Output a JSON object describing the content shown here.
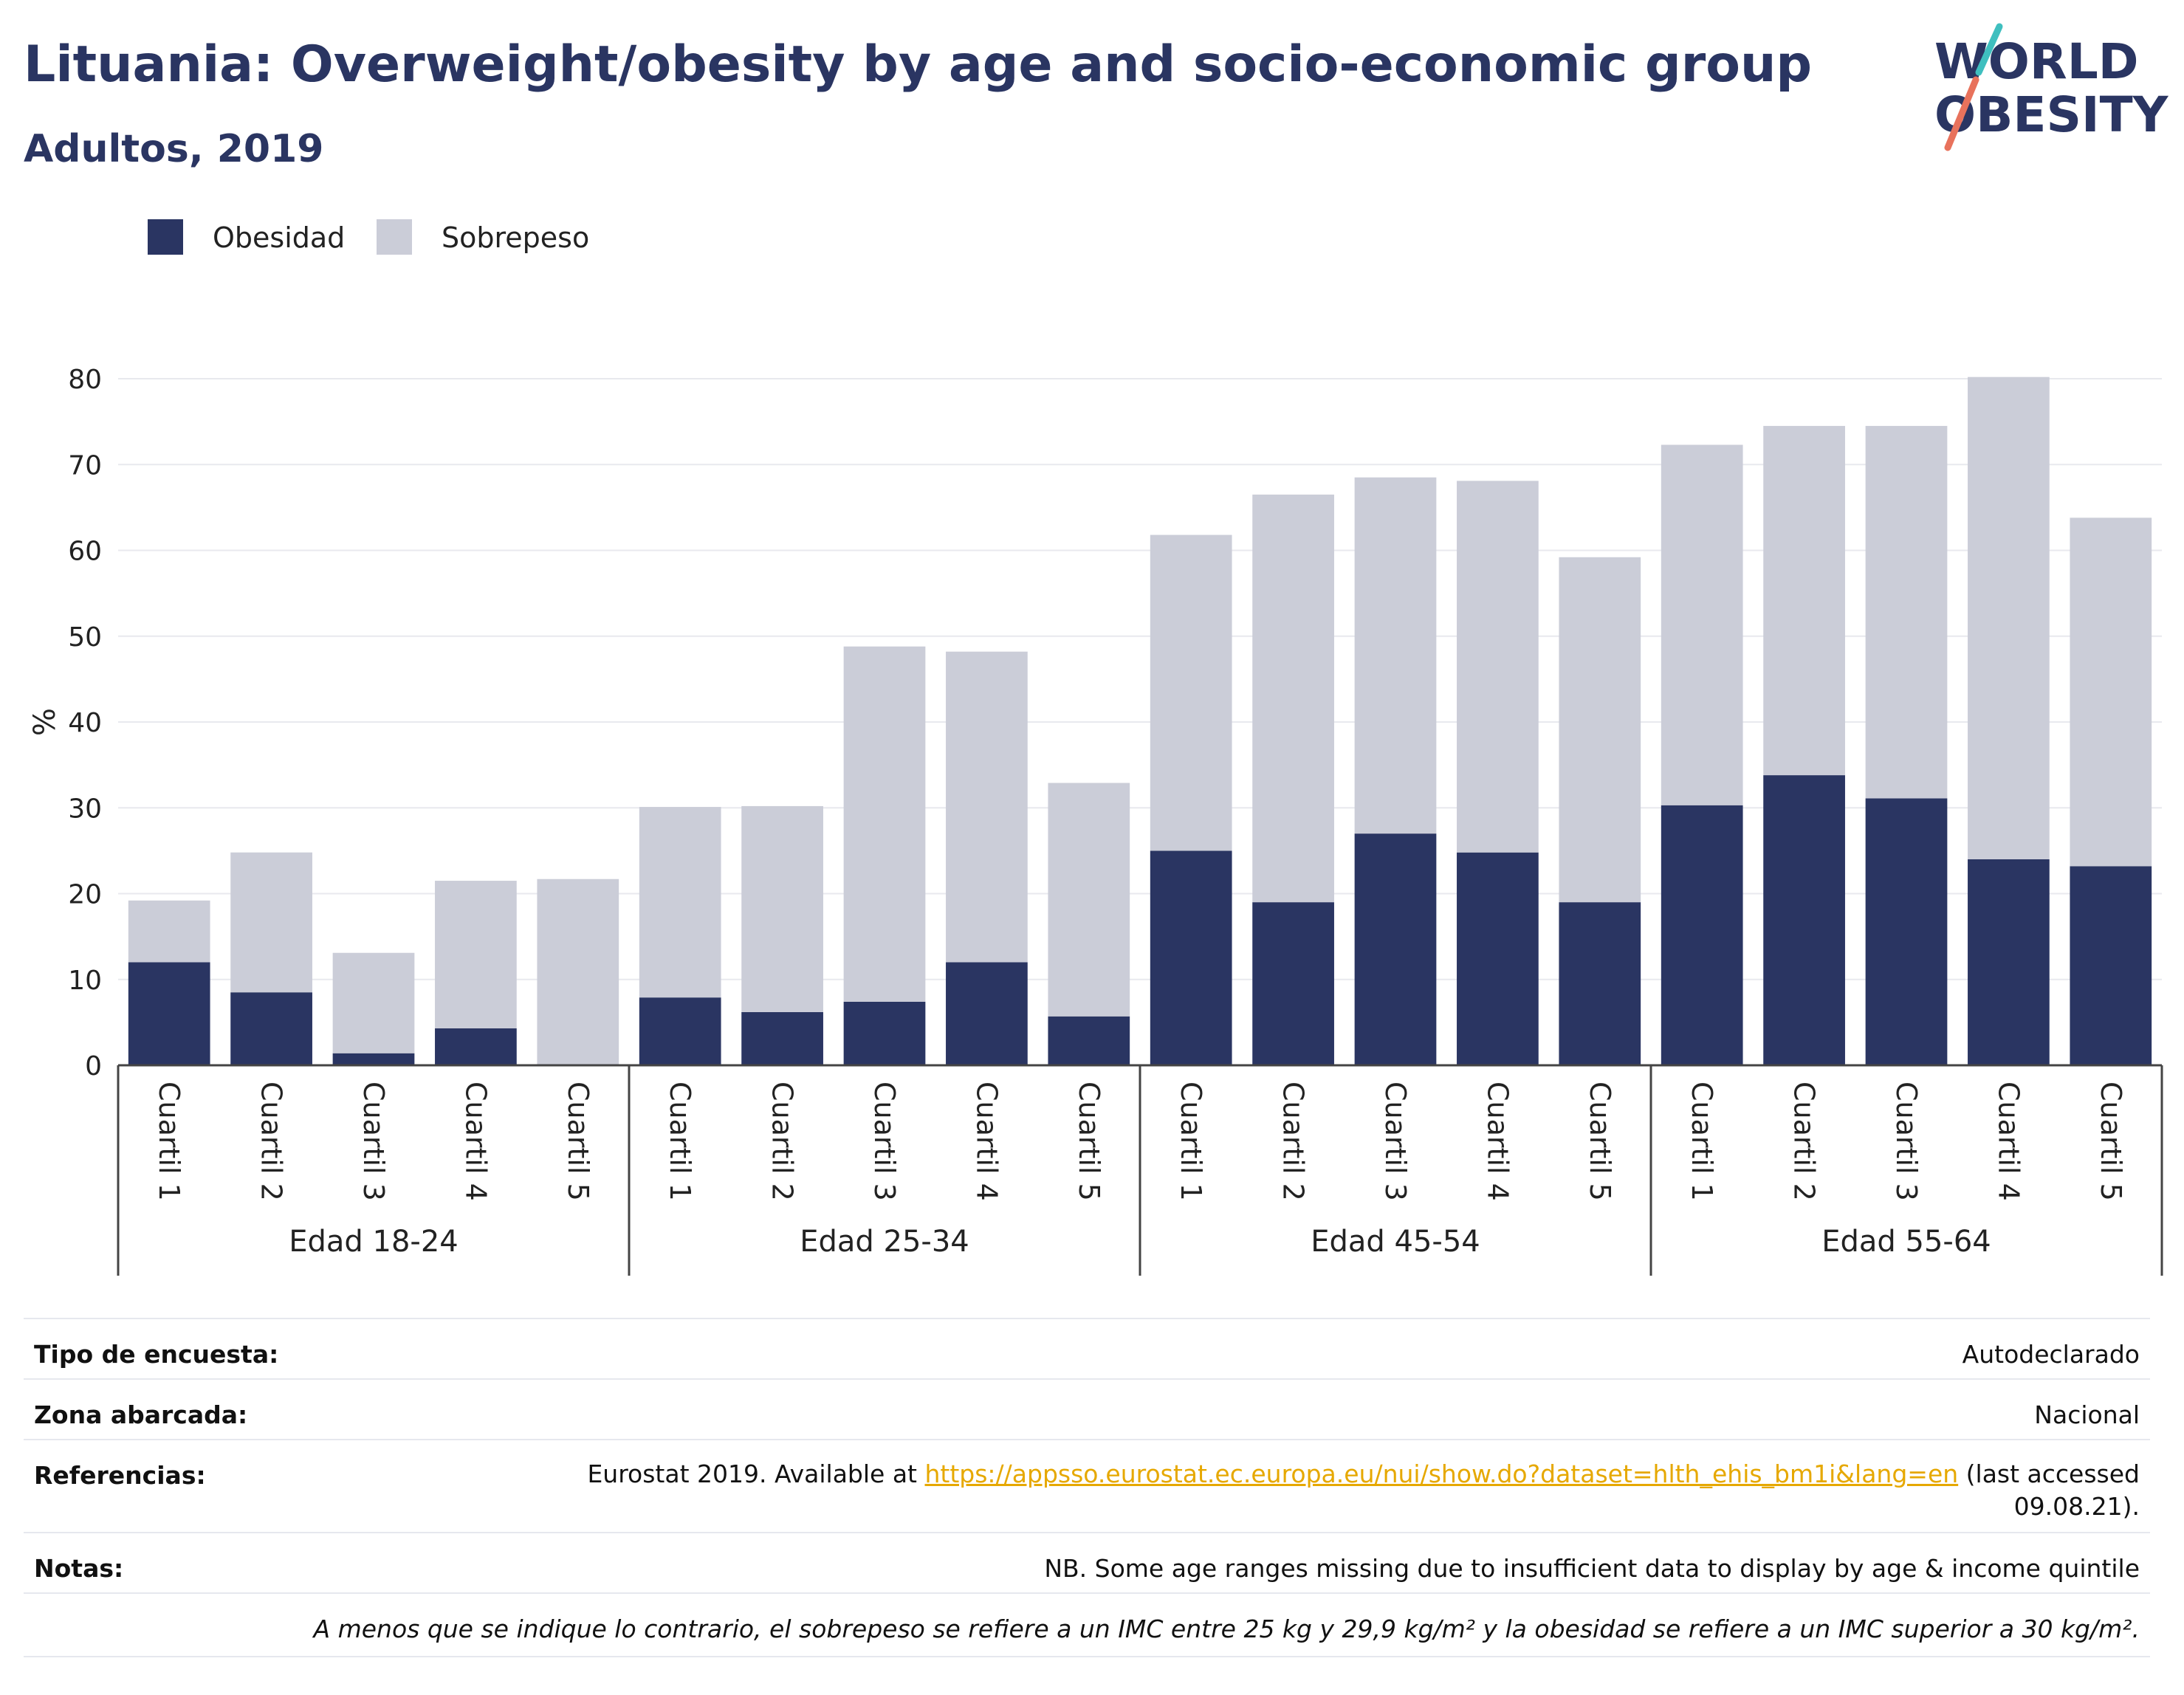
{
  "header": {
    "title": "Lituania: Overweight/obesity by age and socio-economic group",
    "subtitle": "Adultos, 2019"
  },
  "logo": {
    "line1": "WORLD",
    "line2": "OBESITY",
    "accent_colors": [
      "#3fbfbf",
      "#e8725c"
    ]
  },
  "legend": {
    "items": [
      {
        "label": "Obesidad",
        "color": "#2a3562"
      },
      {
        "label": "Sobrepeso",
        "color": "#cbcdd8"
      }
    ]
  },
  "chart_data": {
    "type": "bar",
    "stacked": true,
    "ylabel": "%",
    "ylim": [
      0,
      80
    ],
    "yticks": [
      0,
      10,
      20,
      30,
      40,
      50,
      60,
      70,
      80
    ],
    "grid": true,
    "legend_position": "top-left",
    "groups": [
      "Edad 18-24",
      "Edad 25-34",
      "Edad 45-54",
      "Edad 55-64"
    ],
    "categories": [
      "Cuartil 1",
      "Cuartil 2",
      "Cuartil 3",
      "Cuartil 4",
      "Cuartil 5"
    ],
    "series": [
      {
        "name": "Obesidad",
        "color": "#2a3562",
        "values": [
          [
            12,
            8.5,
            1.4,
            4.3,
            0
          ],
          [
            7.9,
            6.2,
            7.4,
            12,
            5.7
          ],
          [
            25,
            19,
            27,
            24.8,
            19
          ],
          [
            30.3,
            33.8,
            31.1,
            24,
            23.2
          ]
        ]
      },
      {
        "name": "Sobrepeso",
        "color": "#cbcdd8",
        "values": [
          [
            7.2,
            16.3,
            11.7,
            17.2,
            21.7
          ],
          [
            22.2,
            24,
            41.4,
            36.2,
            27.2
          ],
          [
            36.8,
            47.5,
            41.5,
            43.3,
            40.2
          ],
          [
            42,
            40.7,
            43.4,
            56.2,
            40.6
          ]
        ]
      }
    ]
  },
  "info": {
    "survey_type": {
      "label": "Tipo de encuesta:",
      "value": "Autodeclarado"
    },
    "coverage": {
      "label": "Zona abarcada:",
      "value": "Nacional"
    },
    "references": {
      "label": "Referencias:",
      "prefix": "Eurostat 2019. Available at ",
      "link": "https://appsso.eurostat.ec.europa.eu/nui/show.do?dataset=hlth_ehis_bm1i&lang=en",
      "suffix": " (last accessed 09.08.21)."
    },
    "notes": {
      "label": "Notas:",
      "value": "NB. Some age ranges missing due to insufficient data to display by age & income quintile"
    },
    "footnote": "A menos que se indique lo contrario, el sobrepeso se refiere a un IMC entre 25 kg y 29,9 kg/m² y la obesidad se refiere a un IMC superior a 30 kg/m²."
  }
}
